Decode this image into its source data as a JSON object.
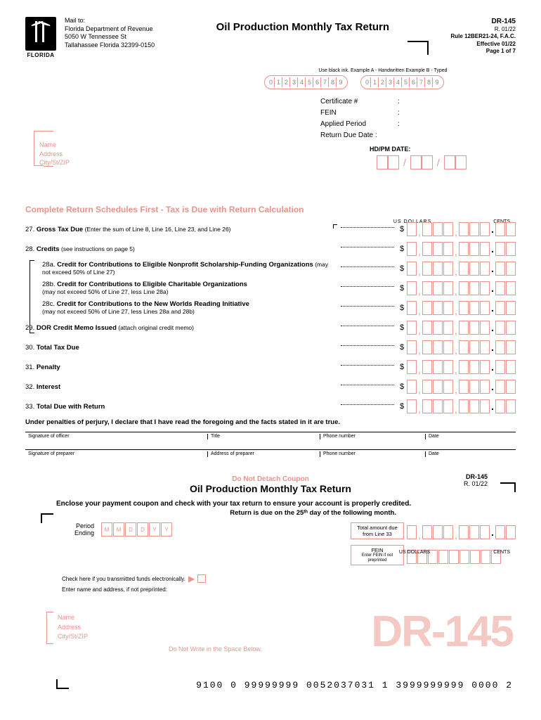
{
  "header": {
    "logo_label": "FLORIDA",
    "mail_to": "Mail to:",
    "dept": "Florida Department of Revenue",
    "addr1": "5050 W Tennessee St",
    "addr2": "Tallahassee Florida 32399-0150",
    "title": "Oil Production Monthly Tax Return",
    "form_no": "DR-145",
    "revision": "R. 01/22",
    "rule": "Rule 12BER21-24, F.A.C.",
    "effective": "Effective 01/22",
    "page": "Page 1 of 7"
  },
  "example": {
    "instruction": "Use black ink.   Example A - Handwritten   Example B - Typed",
    "digitsA": [
      "0",
      "1",
      "2",
      "3",
      "4",
      "5",
      "6",
      "7",
      "8",
      "9"
    ],
    "digitsB": [
      "0",
      "1",
      "2",
      "3",
      "4",
      "5",
      "6",
      "7",
      "8",
      "9"
    ]
  },
  "cert": {
    "cert_label": "Certificate #",
    "fein_label": "FEIN",
    "period_label": "Applied Period",
    "due_label": "Return Due Date :",
    "colon": ":"
  },
  "name_block": {
    "name": "Name",
    "address": "Address",
    "city": "City/St/ZIP"
  },
  "hdpm": "HD/PM DATE:",
  "section_title": "Complete Return Schedules First - Tax is Due with Return Calculation",
  "col_hdr_dollars": "US DOLLARS",
  "col_hdr_cents": "CENTS",
  "lines": [
    {
      "num": "27.",
      "bold": "Gross Tax Due",
      "rest": " (Enter the sum of Line 8, Line 16, Line 23, and Line 26)"
    },
    {
      "num": "28.",
      "bold": "Credits",
      "rest": " (see instructions on page 5)"
    },
    {
      "num": "28a.",
      "bold": "Credit for Contributions to Eligible Nonprofit Scholarship-Funding Organizations",
      "rest": " (may not exceed 50% of Line 27)",
      "indent": true
    },
    {
      "num": "28b.",
      "bold": "Credit for Contributions to Eligible Charitable Organizations",
      "rest": "(may not exceed 50% of Line 27, less Line 28a)",
      "indent": true,
      "twoline": true
    },
    {
      "num": "28c.",
      "bold": "Credit for Contributions to the New Worlds Reading Initiative",
      "rest": "(may not exceed 50% of Line 27, less Lines 28a and 28b)",
      "indent": true,
      "twoline": true
    },
    {
      "num": "29.",
      "bold": "DOR Credit Memo Issued",
      "rest": " (attach original credit memo)"
    },
    {
      "num": "30.",
      "bold": "Total Tax Due",
      "rest": ""
    },
    {
      "num": "31.",
      "bold": "Penalty",
      "rest": ""
    },
    {
      "num": "32.",
      "bold": "Interest",
      "rest": ""
    },
    {
      "num": "33.",
      "bold": "Total Due with Return",
      "rest": ""
    }
  ],
  "perjury": "Under penalties of perjury, I declare that I have read the foregoing and the facts stated in it are true.",
  "sig": {
    "officer": "Signature of officer",
    "title": "Title",
    "phone": "Phone number",
    "date": "Date",
    "preparer": "Signature of preparer",
    "addr_prep": "Address of preparer"
  },
  "coupon": {
    "do_not_detach": "Do Not Detach Coupon",
    "title": "Oil Production Monthly Tax Return",
    "form_no": "DR-145",
    "revision": "R. 01/22",
    "instruction": "Enclose your payment coupon and check with your tax return to ensure your account is properly credited.",
    "due": "Return is due on the 25ᵗʰ day of the following month.",
    "period": "Period",
    "ending": "Ending",
    "period_boxes": [
      "M",
      "M",
      "D",
      "D",
      "Y",
      "Y"
    ],
    "check_text": "Check here if you transmitted funds electronically.",
    "enter_name": "Enter name and address, if not preprinted:",
    "total_label": "Total amount due from Line 33",
    "fein_label": "FEIN",
    "fein_sub": "Enter FEIN if not preprinted",
    "big_no": "DR-145",
    "bottom_text": "Do Not Write in the Space Below.",
    "barcode": "9100  0  99999999  0052037031  1  3999999999  0000  2"
  }
}
